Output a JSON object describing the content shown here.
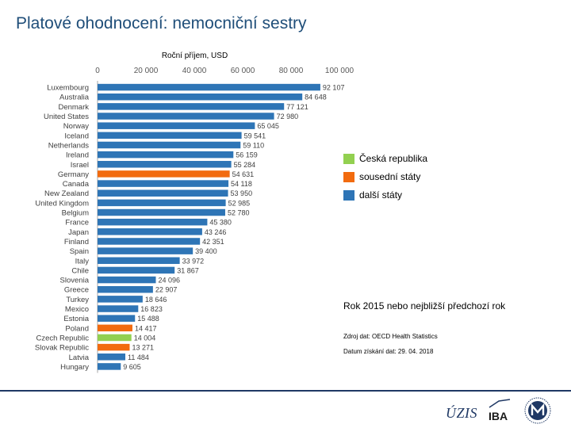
{
  "title": "Platové ohodnocení: nemocniční sestry",
  "colors": {
    "czech": "#92d050",
    "neighbor": "#f26b0f",
    "other": "#2e75b6",
    "title": "#1f4e79",
    "footer_rule": "#1f3864",
    "axis_line": "#a6a6a6"
  },
  "chart_data": {
    "type": "bar",
    "orientation": "horizontal",
    "title": "Roční příjem, USD",
    "xlim": [
      0,
      100000
    ],
    "xticks": [
      "0",
      "20 000",
      "40 000",
      "60 000",
      "80 000",
      "100 000"
    ],
    "categories": [
      "Luxembourg",
      "Australia",
      "Denmark",
      "United States",
      "Norway",
      "Iceland",
      "Netherlands",
      "Ireland",
      "Israel",
      "Germany",
      "Canada",
      "New Zealand",
      "United Kingdom",
      "Belgium",
      "France",
      "Japan",
      "Finland",
      "Spain",
      "Italy",
      "Chile",
      "Slovenia",
      "Greece",
      "Turkey",
      "Mexico",
      "Estonia",
      "Poland",
      "Czech Republic",
      "Slovak Republic",
      "Latvia",
      "Hungary"
    ],
    "values": [
      92107,
      84648,
      77121,
      72980,
      65045,
      59541,
      59110,
      56159,
      55284,
      54631,
      54118,
      53950,
      52985,
      52780,
      45380,
      43246,
      42351,
      39400,
      33972,
      31867,
      24096,
      22907,
      18646,
      16823,
      15488,
      14417,
      14004,
      13271,
      11484,
      9605
    ],
    "value_labels": [
      "92 107",
      "84 648",
      "77 121",
      "72 980",
      "65 045",
      "59 541",
      "59 110",
      "56 159",
      "55 284",
      "54 631",
      "54 118",
      "53 950",
      "52 985",
      "52 780",
      "45 380",
      "43 246",
      "42 351",
      "39 400",
      "33 972",
      "31 867",
      "24 096",
      "22 907",
      "18 646",
      "16 823",
      "15 488",
      "14 417",
      "14 004",
      "13 271",
      "11 484",
      "9 605"
    ],
    "groups": [
      "other",
      "other",
      "other",
      "other",
      "other",
      "other",
      "other",
      "other",
      "other",
      "neighbor",
      "other",
      "other",
      "other",
      "other",
      "other",
      "other",
      "other",
      "other",
      "other",
      "other",
      "other",
      "other",
      "other",
      "other",
      "other",
      "neighbor",
      "czech",
      "neighbor",
      "other",
      "other"
    ],
    "legend": [
      {
        "key": "czech",
        "label": "Česká republika"
      },
      {
        "key": "neighbor",
        "label": "sousední státy"
      },
      {
        "key": "other",
        "label": "další státy"
      }
    ],
    "legend_position": "right"
  },
  "notes": {
    "year": "Rok 2015 nebo nejbližší předchozí rok",
    "source": "Zdroj dat: OECD Health Statistics",
    "date": "Datum získání dat: 29. 04. 2018"
  },
  "logos": {
    "uzis": "ÚZIS",
    "iba": "IBA"
  }
}
